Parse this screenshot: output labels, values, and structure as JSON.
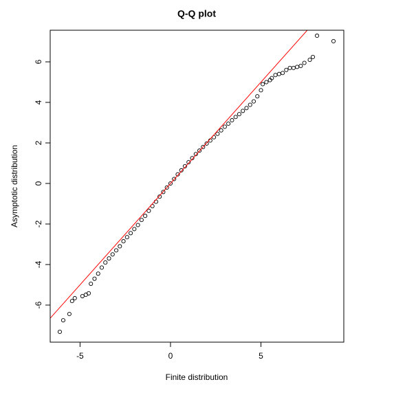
{
  "chart_data": {
    "type": "scatter",
    "title": "Q-Q plot",
    "x_label": "Finite distribution",
    "y_label": "Asymptotic distribution",
    "x": [
      -6.12,
      -5.93,
      -5.59,
      -5.44,
      -5.29,
      -4.87,
      -4.68,
      -4.52,
      -4.4,
      -4.2,
      -4.0,
      -3.8,
      -3.6,
      -3.4,
      -3.2,
      -3.0,
      -2.8,
      -2.6,
      -2.4,
      -2.2,
      -2.0,
      -1.8,
      -1.6,
      -1.4,
      -1.2,
      -1.0,
      -0.8,
      -0.6,
      -0.4,
      -0.2,
      0,
      0.2,
      0.4,
      0.6,
      0.8,
      1.0,
      1.2,
      1.4,
      1.6,
      1.8,
      2.0,
      2.2,
      2.4,
      2.6,
      2.8,
      3.0,
      3.2,
      3.4,
      3.6,
      3.8,
      4.0,
      4.2,
      4.4,
      4.6,
      4.8,
      5.0,
      5.1,
      5.3,
      5.5,
      5.6,
      5.8,
      6.0,
      6.2,
      6.4,
      6.6,
      6.8,
      7.0,
      7.2,
      7.4,
      7.7,
      7.87,
      8.1,
      9.01
    ],
    "values": [
      -7.32,
      -6.75,
      -6.44,
      -5.8,
      -5.66,
      -5.56,
      -5.49,
      -5.42,
      -4.95,
      -4.7,
      -4.45,
      -4.15,
      -3.9,
      -3.7,
      -3.5,
      -3.3,
      -3.1,
      -2.85,
      -2.65,
      -2.45,
      -2.25,
      -2.05,
      -1.8,
      -1.6,
      -1.35,
      -1.12,
      -0.9,
      -0.65,
      -0.42,
      -0.2,
      0,
      0.22,
      0.45,
      0.65,
      0.85,
      1.05,
      1.25,
      1.45,
      1.62,
      1.8,
      1.97,
      2.12,
      2.28,
      2.45,
      2.62,
      2.8,
      2.95,
      3.12,
      3.28,
      3.42,
      3.58,
      3.72,
      3.88,
      4.05,
      4.3,
      4.6,
      4.9,
      5.0,
      5.1,
      5.2,
      5.35,
      5.4,
      5.45,
      5.6,
      5.7,
      5.7,
      5.75,
      5.8,
      5.95,
      6.1,
      6.24,
      7.29,
      7.02
    ],
    "color": "#000000",
    "reference_line": {
      "intercept": 0,
      "slope": 1,
      "color": "#ff0000"
    },
    "xlim": [
      -6.65,
      9.58
    ],
    "ylim": [
      -7.83,
      7.56
    ],
    "xticks": [
      -5,
      0,
      5
    ],
    "yticks": [
      -6,
      -4,
      -2,
      0,
      2,
      4,
      6
    ]
  }
}
